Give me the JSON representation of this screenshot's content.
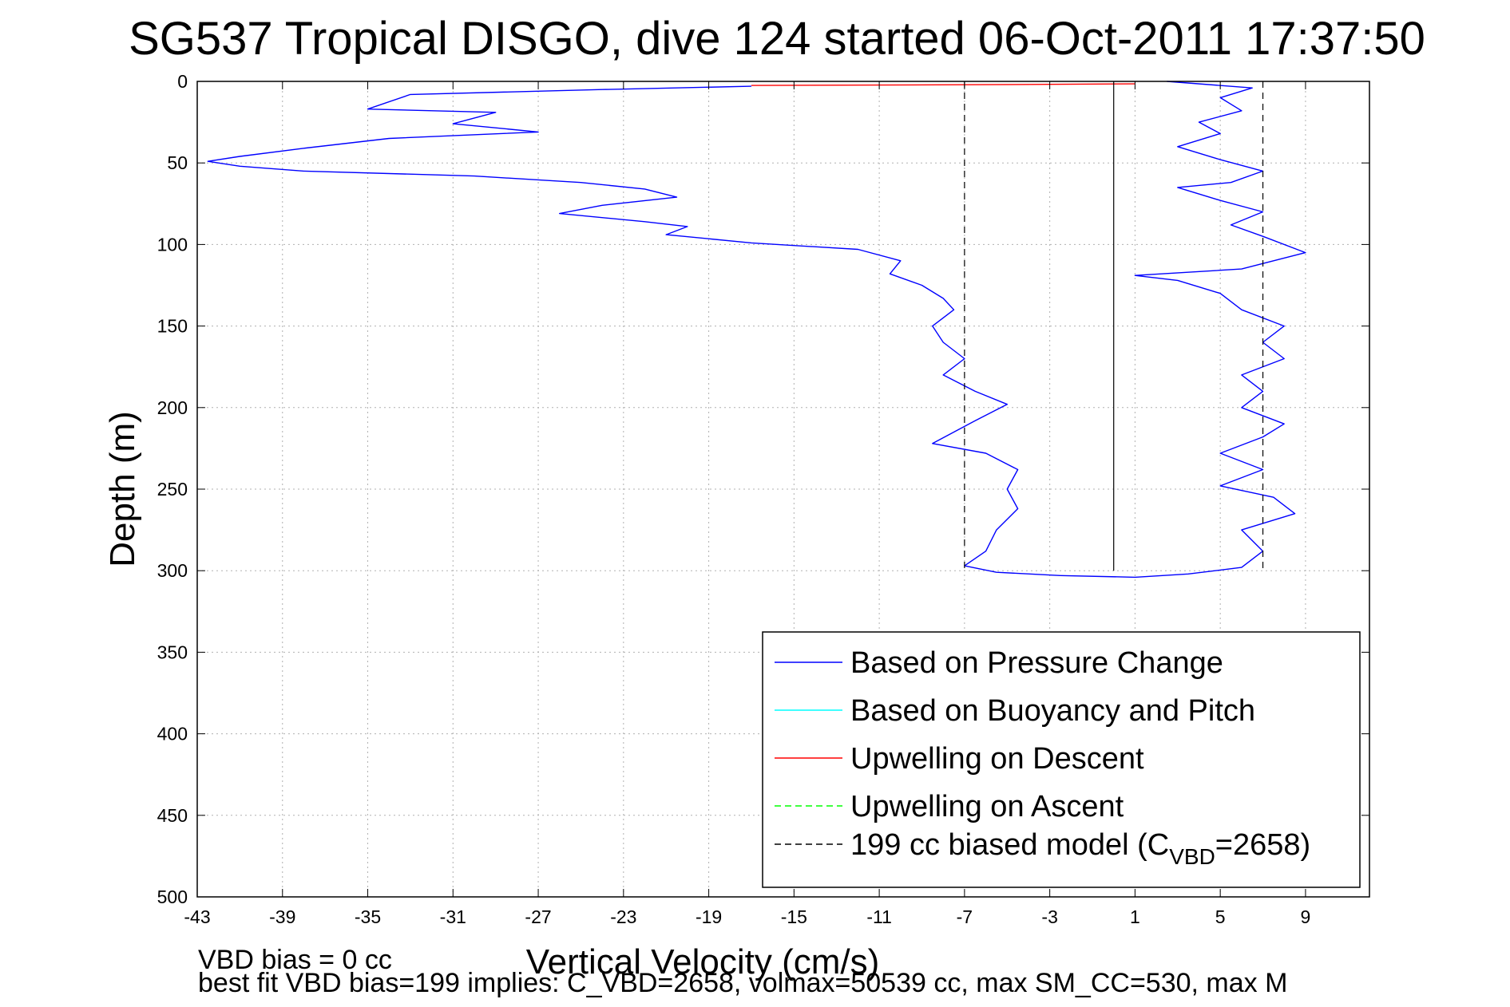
{
  "chart_data": {
    "type": "line",
    "title": "SG537 Tropical DISGO, dive 124 started 06-Oct-2011 17:37:50",
    "xlabel": "Vertical Velocity (cm/s)",
    "ylabel": "Depth (m)",
    "xlim": [
      -43,
      12
    ],
    "ylim": [
      500,
      0
    ],
    "y_reversed": true,
    "grid": true,
    "xticks": [
      -43,
      -39,
      -35,
      -31,
      -27,
      -23,
      -19,
      -15,
      -11,
      -7,
      -3,
      1,
      5,
      9
    ],
    "yticks": [
      0,
      50,
      100,
      150,
      200,
      250,
      300,
      350,
      400,
      450,
      500
    ],
    "legend_position": "bottom-right",
    "series": [
      {
        "name": "Based on Pressure Change",
        "color": "#0000ff",
        "style": "solid",
        "segment": "descent",
        "points": [
          [
            -17,
            3
          ],
          [
            -24,
            5
          ],
          [
            -33,
            8
          ],
          [
            -35,
            17
          ],
          [
            -29,
            19
          ],
          [
            -31,
            26
          ],
          [
            -27,
            31
          ],
          [
            -34,
            35
          ],
          [
            -38,
            41
          ],
          [
            -41,
            46
          ],
          [
            -42.5,
            49
          ],
          [
            -41,
            52
          ],
          [
            -38,
            55
          ],
          [
            -30,
            58
          ],
          [
            -25,
            62
          ],
          [
            -22,
            66
          ],
          [
            -20.5,
            71
          ],
          [
            -24,
            76
          ],
          [
            -26,
            81
          ],
          [
            -22,
            86
          ],
          [
            -20,
            89
          ],
          [
            -21,
            94
          ],
          [
            -17,
            99
          ],
          [
            -12,
            103
          ],
          [
            -10,
            110
          ],
          [
            -10.5,
            118
          ],
          [
            -9,
            125
          ],
          [
            -8,
            133
          ],
          [
            -7.5,
            140
          ],
          [
            -8.5,
            150
          ],
          [
            -8,
            160
          ],
          [
            -7,
            170
          ],
          [
            -8,
            180
          ],
          [
            -6.5,
            190
          ],
          [
            -5,
            198
          ],
          [
            -6.5,
            208
          ],
          [
            -8.5,
            222
          ],
          [
            -6,
            228
          ],
          [
            -4.5,
            238
          ],
          [
            -5,
            250
          ],
          [
            -4.5,
            262
          ],
          [
            -5.5,
            275
          ],
          [
            -6,
            288
          ],
          [
            -7,
            297
          ],
          [
            -5.5,
            301
          ],
          [
            -2.5,
            303
          ]
        ]
      },
      {
        "name": "",
        "color": "#0000ff",
        "style": "solid",
        "segment": "ascent",
        "points": [
          [
            -2.5,
            303
          ],
          [
            1,
            304
          ],
          [
            3.5,
            302
          ],
          [
            6,
            298
          ],
          [
            7,
            288
          ],
          [
            6,
            275
          ],
          [
            8.5,
            265
          ],
          [
            7.5,
            255
          ],
          [
            5,
            248
          ],
          [
            7,
            238
          ],
          [
            5,
            228
          ],
          [
            7,
            218
          ],
          [
            8,
            210
          ],
          [
            6,
            200
          ],
          [
            7,
            190
          ],
          [
            6,
            180
          ],
          [
            8,
            170
          ],
          [
            7,
            160
          ],
          [
            8,
            150
          ],
          [
            6,
            140
          ],
          [
            5,
            130
          ],
          [
            3,
            122
          ],
          [
            1,
            119
          ],
          [
            6,
            115
          ],
          [
            9,
            105
          ],
          [
            7,
            95
          ],
          [
            5.5,
            88
          ],
          [
            7,
            80
          ],
          [
            5,
            73
          ],
          [
            3,
            65
          ],
          [
            5.5,
            62
          ],
          [
            7,
            55
          ],
          [
            5,
            48
          ],
          [
            3,
            40
          ],
          [
            5,
            32
          ],
          [
            4,
            25
          ],
          [
            6,
            18
          ],
          [
            5,
            10
          ],
          [
            6.5,
            4
          ],
          [
            2.5,
            0
          ]
        ]
      },
      {
        "name": "Based on Buoyancy and Pitch",
        "color": "#00ffff",
        "style": "solid",
        "points": []
      },
      {
        "name": "Upwelling on Descent",
        "color": "#ff0000",
        "style": "solid",
        "points": [
          [
            -17,
            2.5
          ],
          [
            -6,
            2
          ],
          [
            1,
            1.5
          ]
        ]
      },
      {
        "name": "Upwelling on Ascent",
        "color": "#00ff00",
        "style": "dashed",
        "points": []
      },
      {
        "name": "199 cc biased model (C",
        "name_sub": "VBD",
        "name_suffix": "=2658)",
        "color": "#000000",
        "style": "dashed",
        "vlines": [
          -7,
          7
        ]
      },
      {
        "name": "",
        "color": "#000000",
        "style": "solid",
        "vlines": [
          0
        ]
      }
    ],
    "annotations": [
      "VBD bias = 0 cc",
      "best fit VBD bias=199 implies: C_VBD=2658, volmax=50539 cc, max SM_CC=530, max M"
    ]
  }
}
